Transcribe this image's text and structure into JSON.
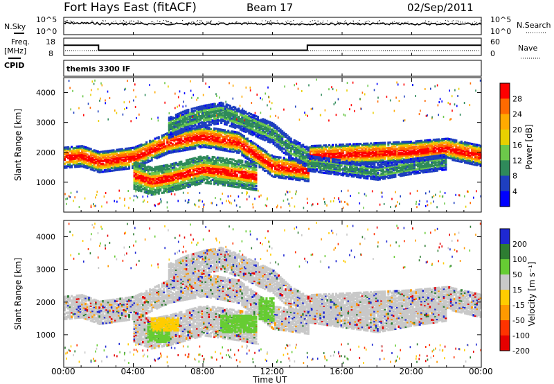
{
  "header": {
    "title": "Fort Hays East (fitACF)",
    "beam": "Beam 17",
    "date": "02/Sep/2011"
  },
  "noise_panel": {
    "left_label": "N.Sky",
    "right_label": "N.Search",
    "left_ticks": [
      "10^5",
      "10^0"
    ],
    "right_ticks": [
      "10^5",
      "10^0"
    ]
  },
  "freq_panel": {
    "left_label_1": "Freq.",
    "left_label_2": "[MHz]",
    "right_label": "Nave",
    "left_ticks": [
      "18",
      "8"
    ],
    "right_ticks": [
      "60",
      "0"
    ]
  },
  "cpid_panel": {
    "label": "CPID",
    "program": "themis 3300 IF"
  },
  "power_panel": {
    "ylabel": "Slant Range [km]",
    "colorbar_label": "Power [dB]",
    "colorbar_ticks": [
      "28",
      "24",
      "20",
      "16",
      "12",
      "8",
      "4"
    ]
  },
  "velocity_panel": {
    "ylabel": "Slant Range [km]",
    "colorbar_label": "Velocity [m s⁻¹]",
    "colorbar_ticks": [
      "200",
      "100",
      "50",
      "15",
      "-15",
      "-50",
      "-100",
      "-200"
    ]
  },
  "xaxis": {
    "label": "Time UT",
    "ticks": [
      "00:00",
      "04:00",
      "08:00",
      "12:00",
      "16:00",
      "20:00",
      "00:00"
    ]
  },
  "chart_data": {
    "type": "heatmap",
    "x_unit": "hours UT",
    "y_unit": "km",
    "xlim": [
      0,
      24
    ],
    "ylim": [
      0,
      4500
    ],
    "yticks": [
      1000,
      2000,
      3000,
      4000
    ],
    "frequency_steps": [
      {
        "start_hour": 0,
        "end_hour": 2.0,
        "freq_mhz": 14.5
      },
      {
        "start_hour": 2.0,
        "end_hour": 14.0,
        "freq_mhz": 10.5
      },
      {
        "start_hour": 14.0,
        "end_hour": 24,
        "freq_mhz": 14.5
      }
    ],
    "power_colors": [
      "#ff0000",
      "#ff6a00",
      "#ffaa00",
      "#e8d000",
      "#6cc84a",
      "#2f8a5a",
      "#1e3fbf",
      "#0000ff"
    ],
    "velocity_colors": [
      "#1e28d2",
      "#2e7d32",
      "#66cc33",
      "#c8c8c8",
      "#ffcc00",
      "#ff9900",
      "#ff3300",
      "#e60000"
    ],
    "echo_bands": [
      {
        "name_ref": "main",
        "points": [
          [
            0,
            1800
          ],
          [
            1,
            1850
          ],
          [
            2,
            1650
          ],
          [
            4,
            1800
          ],
          [
            6,
            2300
          ],
          [
            8,
            2500
          ],
          [
            10,
            2300
          ],
          [
            12,
            1500
          ],
          [
            14,
            1350
          ],
          [
            14.01,
            1850
          ],
          [
            16,
            1900
          ],
          [
            20,
            2000
          ],
          [
            22,
            2100
          ],
          [
            24,
            1850
          ]
        ],
        "width_km": 350
      },
      {
        "name_ref": "lower",
        "points": [
          [
            4,
            1200
          ],
          [
            5,
            1000
          ],
          [
            6,
            1100
          ],
          [
            8,
            1400
          ],
          [
            10,
            1250
          ],
          [
            11,
            1150
          ]
        ],
        "width_km": 450
      },
      {
        "name_ref": "upper",
        "points": [
          [
            6,
            2800
          ],
          [
            7,
            3050
          ],
          [
            8,
            3200
          ],
          [
            9,
            3300
          ],
          [
            10,
            3100
          ],
          [
            11,
            2850
          ],
          [
            12,
            2600
          ],
          [
            13,
            2100
          ],
          [
            14,
            1800
          ]
        ],
        "width_km": 350
      },
      {
        "name_ref": "late_lower",
        "points": [
          [
            14,
            1600
          ],
          [
            16,
            1450
          ],
          [
            18,
            1300
          ],
          [
            20,
            1500
          ],
          [
            22,
            1650
          ]
        ],
        "width_km": 250
      }
    ],
    "velocity_patches": [
      {
        "hours": [
          4.8,
          6.0
        ],
        "km": [
          750,
          1300
        ],
        "level": "slightly_positive"
      },
      {
        "hours": [
          5.0,
          6.5
        ],
        "km": [
          1100,
          1500
        ],
        "level": "negative_small"
      },
      {
        "hours": [
          9.0,
          11.0
        ],
        "km": [
          1050,
          1550
        ],
        "level": "slightly_positive"
      },
      {
        "hours": [
          11.2,
          12.0
        ],
        "km": [
          1400,
          2100
        ],
        "level": "slightly_positive"
      }
    ]
  }
}
